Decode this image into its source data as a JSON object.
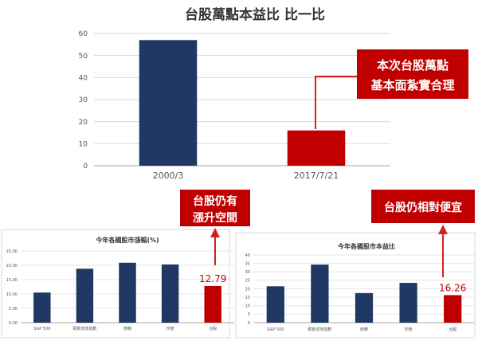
{
  "colors": {
    "navy": "#1f3864",
    "red": "#c00000",
    "callout_bg": "#c00000",
    "arrow": "#d31f1f",
    "axis": "#bfbfbf"
  },
  "callouts": {
    "main_line1": "本次台股萬點",
    "main_line2": "基本面紮實合理",
    "left_line1": "台股仍有",
    "left_line2": "漲升空間",
    "right": "台股仍相對便宜"
  },
  "chart_data": [
    {
      "type": "bar",
      "title": "台股萬點本益比 比一比",
      "categories": [
        "2000/3",
        "2017/7/21"
      ],
      "values": [
        57,
        16
      ],
      "colors": [
        "#1f3864",
        "#c00000"
      ],
      "ylim": [
        0,
        60
      ],
      "yticks": [
        "0",
        "10",
        "20",
        "30",
        "40",
        "50",
        "60"
      ],
      "xlabel": "",
      "ylabel": ""
    },
    {
      "type": "bar",
      "title": "今年各國股市漲幅(%)",
      "categories": [
        "S&P 500",
        "那斯達克指數",
        "南韓",
        "印度",
        "台股"
      ],
      "values": [
        10.5,
        18.8,
        20.9,
        20.3,
        12.79
      ],
      "colors": [
        "#1f3864",
        "#1f3864",
        "#1f3864",
        "#1f3864",
        "#c00000"
      ],
      "value_label": "12.79",
      "ylim": [
        0,
        25
      ],
      "yticks": [
        "0.00",
        "5.00",
        "10.00",
        "15.00",
        "20.00",
        "25.00"
      ],
      "xlabel": "",
      "ylabel": ""
    },
    {
      "type": "bar",
      "title": "今年各國股市本益比",
      "categories": [
        "S&P 500",
        "那斯達克指數",
        "南韓",
        "印度",
        "台股"
      ],
      "values": [
        21.5,
        34.3,
        17.5,
        23.5,
        16.26
      ],
      "colors": [
        "#1f3864",
        "#1f3864",
        "#1f3864",
        "#1f3864",
        "#c00000"
      ],
      "value_label": "16.26",
      "ylim": [
        0,
        40
      ],
      "yticks": [
        "0",
        "5",
        "10",
        "15",
        "20",
        "25",
        "30",
        "35",
        "40"
      ],
      "xlabel": "",
      "ylabel": ""
    }
  ]
}
